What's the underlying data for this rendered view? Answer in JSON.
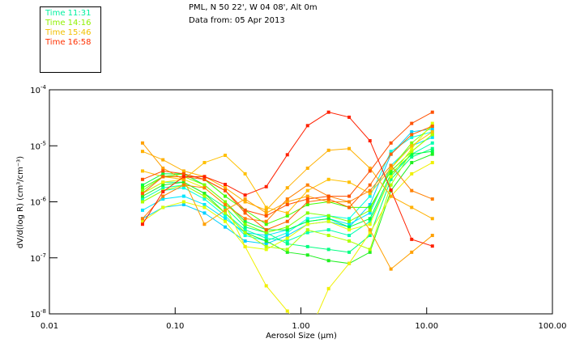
{
  "header": {
    "location": "PML, N 50 22', W 04 08', Alt 0m",
    "date": "Data from: 05 Apr 2013"
  },
  "legend": [
    {
      "label": "Time 11:31",
      "color": "#00f0a0"
    },
    {
      "label": "Time 14:16",
      "color": "#90f000"
    },
    {
      "label": "Time 15:46",
      "color": "#f0c000"
    },
    {
      "label": "Time 16:58",
      "color": "#ff3000"
    }
  ],
  "chart_data": {
    "type": "line",
    "xscale": "log",
    "yscale": "log",
    "xlabel": "Aerosol Size (µm)",
    "ylabel": "dV/d(log R)  (cm³/cm⁻³)",
    "xlim": [
      0.01,
      100
    ],
    "ylim_log10": [
      -8,
      -4
    ],
    "xticks": [
      "0.01",
      "0.10",
      "1.00",
      "10.00",
      "100.00"
    ],
    "yticks": [
      {
        "base": "10",
        "exp": "-4"
      },
      {
        "base": "10",
        "exp": "-5"
      },
      {
        "base": "10",
        "exp": "-6"
      },
      {
        "base": "10",
        "exp": "-7"
      },
      {
        "base": "10",
        "exp": "-8"
      }
    ],
    "x": [
      0.055,
      0.08,
      0.117,
      0.171,
      0.25,
      0.36,
      0.53,
      0.78,
      1.13,
      1.66,
      2.42,
      3.54,
      5.2,
      7.6,
      11.1
    ],
    "series_note_log10": true,
    "series": [
      {
        "color": "#00d0ff",
        "log10": [
          -6.3,
          -6.1,
          -6.05,
          -6.2,
          -6.45,
          -6.7,
          -6.75,
          -6.6,
          -6.4,
          -6.35,
          -6.45,
          -6.05,
          -5.15,
          -4.75,
          -4.7
        ]
      },
      {
        "color": "#00e5ff",
        "log10": [
          -6.15,
          -5.95,
          -5.9,
          -6.05,
          -6.3,
          -6.55,
          -6.6,
          -6.5,
          -6.35,
          -6.3,
          -6.4,
          -6.2,
          -5.35,
          -5.0,
          -4.85
        ]
      },
      {
        "color": "#00ffe0",
        "log10": [
          -6.0,
          -5.8,
          -5.75,
          -5.95,
          -6.25,
          -6.6,
          -6.7,
          -6.55,
          -6.3,
          -6.25,
          -6.3,
          -5.9,
          -5.1,
          -4.85,
          -4.75
        ]
      },
      {
        "color": "#00ffb0",
        "log10": [
          -5.95,
          -5.75,
          -5.7,
          -5.9,
          -6.2,
          -6.5,
          -6.65,
          -6.7,
          -6.55,
          -6.5,
          -6.6,
          -6.35,
          -5.55,
          -5.15,
          -4.95
        ]
      },
      {
        "color": "#00ff80",
        "log10": [
          -5.85,
          -5.65,
          -5.65,
          -5.85,
          -6.1,
          -6.45,
          -6.55,
          -6.75,
          -6.8,
          -6.85,
          -6.9,
          -6.6,
          -5.6,
          -5.2,
          -5.05
        ]
      },
      {
        "color": "#00ff40",
        "log10": [
          -5.7,
          -5.5,
          -5.5,
          -5.7,
          -6.0,
          -6.35,
          -6.5,
          -6.5,
          -6.35,
          -6.3,
          -6.45,
          -6.3,
          -5.5,
          -5.15,
          -5.1
        ]
      },
      {
        "color": "#20f020",
        "log10": [
          -5.9,
          -5.7,
          -5.65,
          -5.85,
          -6.2,
          -6.55,
          -6.7,
          -6.9,
          -6.95,
          -7.05,
          -7.1,
          -6.9,
          -5.8,
          -5.3,
          -5.15
        ]
      },
      {
        "color": "#40ff00",
        "log10": [
          -5.75,
          -5.55,
          -5.5,
          -5.6,
          -5.9,
          -6.15,
          -6.4,
          -6.25,
          -6.05,
          -6.0,
          -6.1,
          -6.1,
          -5.45,
          -5.1,
          -4.8
        ]
      },
      {
        "color": "#80ff00",
        "log10": [
          -5.8,
          -5.55,
          -5.55,
          -5.7,
          -6.0,
          -6.4,
          -6.55,
          -6.45,
          -6.2,
          -6.25,
          -6.35,
          -6.15,
          -5.4,
          -4.95,
          -4.65
        ]
      },
      {
        "color": "#b0ff00",
        "log10": [
          -6.0,
          -5.8,
          -5.7,
          -5.9,
          -6.2,
          -6.55,
          -6.8,
          -6.85,
          -6.5,
          -6.6,
          -6.7,
          -6.85,
          -5.7,
          -5.1,
          -4.8
        ]
      },
      {
        "color": "#e0ff00",
        "log10": [
          -6.35,
          -6.1,
          -6.0,
          -6.1,
          -6.35,
          -6.8,
          -6.85,
          -6.65,
          -6.4,
          -6.35,
          -6.5,
          -6.4,
          -5.55,
          -5.05,
          -4.6
        ]
      },
      {
        "color": "#f0f000",
        "log10": [
          -5.85,
          -5.65,
          -5.6,
          -5.75,
          -6.05,
          -6.8,
          -7.5,
          -7.95,
          -8.4,
          -7.55,
          -7.1,
          -6.55,
          -5.9,
          -5.5,
          -5.3
        ]
      },
      {
        "color": "#ffc000",
        "log10": [
          -5.45,
          -5.55,
          -5.6,
          -5.3,
          -5.17,
          -5.5,
          -6.1,
          -6.2,
          -5.8,
          -5.6,
          -5.65,
          -5.85,
          -5.4,
          -5.0,
          -4.75
        ]
      },
      {
        "color": "#ffb000",
        "log10": [
          -5.1,
          -5.25,
          -5.45,
          -5.55,
          -5.75,
          -6.0,
          -6.15,
          -5.75,
          -5.4,
          -5.08,
          -5.05,
          -5.4,
          -5.9,
          -6.1,
          -6.3
        ]
      },
      {
        "color": "#ffa000",
        "log10": [
          -4.95,
          -5.4,
          -5.6,
          -6.4,
          -6.15,
          -5.95,
          -6.2,
          -6.0,
          -5.9,
          -6.0,
          -6.0,
          -6.5,
          -7.2,
          -6.9,
          -6.6
        ]
      },
      {
        "color": "#ff8000",
        "log10": [
          -6.3,
          -5.9,
          -5.7,
          -5.75,
          -6.05,
          -6.3,
          -6.35,
          -5.95,
          -5.7,
          -5.9,
          -6.0,
          -5.8,
          -5.35,
          -5.8,
          -5.95
        ]
      },
      {
        "color": "#ff6000",
        "log10": [
          -5.85,
          -5.55,
          -5.55,
          -5.6,
          -5.8,
          -6.2,
          -6.5,
          -6.35,
          -6.0,
          -5.95,
          -6.1,
          -5.7,
          -5.15,
          -4.8,
          -4.65
        ]
      },
      {
        "color": "#ff5000",
        "log10": [
          -5.6,
          -5.45,
          -5.5,
          -5.6,
          -5.8,
          -6.15,
          -6.25,
          -6.05,
          -5.95,
          -5.9,
          -5.9,
          -5.45,
          -4.95,
          -4.6,
          -4.4
        ]
      },
      {
        "color": "#ff2000",
        "log10": [
          -6.4,
          -5.82,
          -5.55,
          -5.55,
          -5.69,
          -5.88,
          -5.73,
          -5.16,
          -4.64,
          -4.4,
          -4.49,
          -4.91,
          -5.79,
          -6.67,
          -6.79
        ]
      }
    ]
  }
}
